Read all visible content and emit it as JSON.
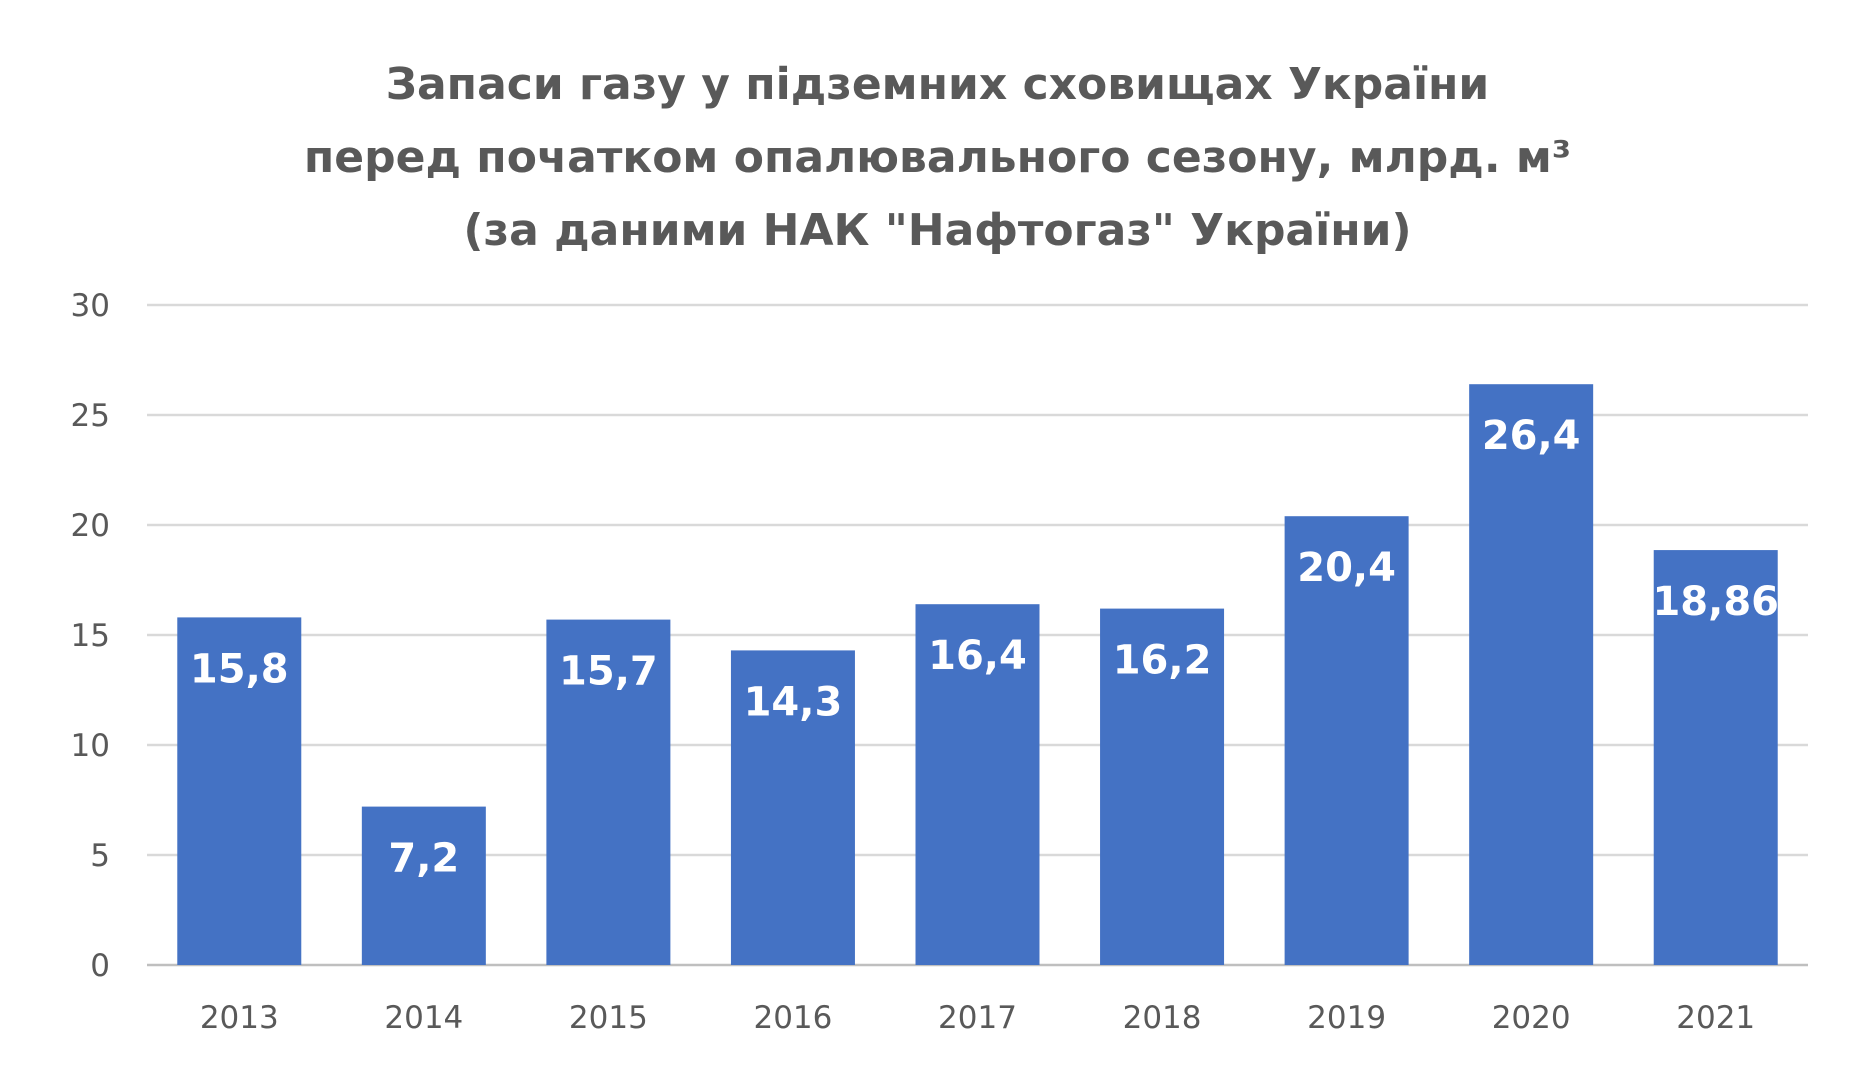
{
  "chart_data": {
    "type": "bar",
    "title_lines": [
      "Запаси газу у підземних сховищах України",
      "перед початком опалювального сезону, млрд. м³",
      "(за даними НАК \"Нафтогаз\" України)"
    ],
    "categories": [
      "2013",
      "2014",
      "2015",
      "2016",
      "2017",
      "2018",
      "2019",
      "2020",
      "2021"
    ],
    "values": [
      15.8,
      7.2,
      15.7,
      14.3,
      16.4,
      16.2,
      20.4,
      26.4,
      18.86
    ],
    "data_labels": [
      "15,8",
      "7,2",
      "15,7",
      "14,3",
      "16,4",
      "16,2",
      "20,4",
      "26,4",
      "18,86"
    ],
    "ylim": [
      0,
      30
    ],
    "yticks": [
      0,
      5,
      10,
      15,
      20,
      25,
      30
    ],
    "grid": true,
    "bar_color": "#4472C4",
    "grid_color": "#D9D9D9"
  }
}
